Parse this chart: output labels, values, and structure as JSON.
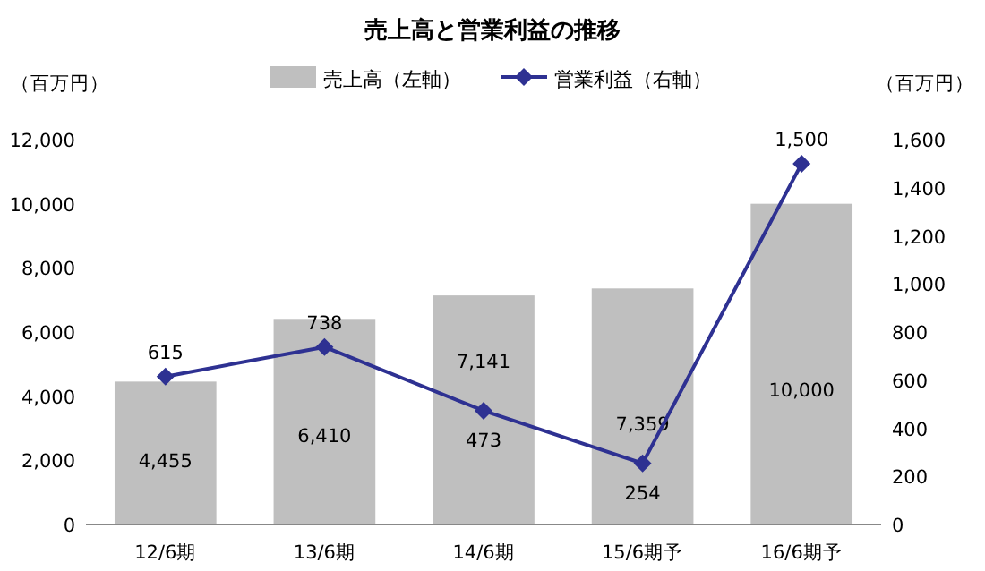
{
  "chart_data": {
    "type": "bar",
    "title": "売上高と営業利益の推移",
    "ylabel": "（百万円）",
    "y2label": "（百万円）",
    "categories": [
      "12/6期",
      "13/6期",
      "14/6期",
      "15/6期予",
      "16/6期予"
    ],
    "series": [
      {
        "name": "売上高（左軸）",
        "color": "#bfbfbf",
        "values": [
          4455,
          6410,
          7141,
          7359,
          10000
        ],
        "value_labels": [
          "4,455",
          "6,410",
          "7,141",
          "7,359",
          "10,000"
        ]
      },
      {
        "name": "営業利益（右軸）",
        "type": "line",
        "axis": "y2",
        "color": "#2e3192",
        "marker": "diamond",
        "values": [
          615,
          738,
          473,
          254,
          1500
        ],
        "value_labels": [
          "615",
          "738",
          "473",
          "254",
          "1,500"
        ]
      }
    ],
    "ylim": [
      0,
      12000
    ],
    "yticks": [
      0,
      {
        "value": 2000,
        "label": "2,000"
      },
      {
        "value": 4000,
        "label": "4,000"
      },
      {
        "value": 6000,
        "label": "6,000"
      },
      {
        "value": 8000,
        "label": "8,000"
      },
      {
        "value": 10000,
        "label": "10,000"
      },
      {
        "value": 12000,
        "label": "12,000"
      }
    ],
    "y2lim": [
      0,
      1600
    ],
    "y2ticks": [
      0,
      200,
      400,
      600,
      800,
      {
        "value": 1000,
        "label": "1,000"
      },
      {
        "value": 1200,
        "label": "1,200"
      },
      {
        "value": 1400,
        "label": "1,400"
      },
      {
        "value": 1600,
        "label": "1,600"
      }
    ],
    "legend": "top"
  }
}
